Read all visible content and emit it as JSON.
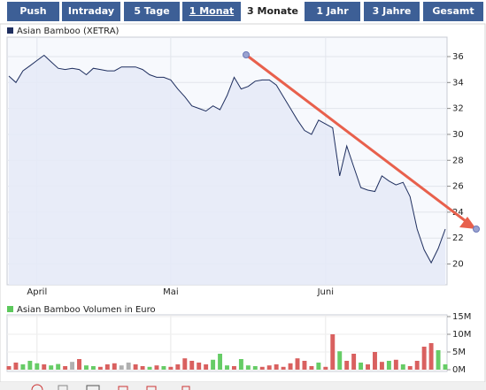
{
  "tabs": [
    "Push",
    "Intraday",
    "5 Tage",
    "1 Monat",
    "3 Monate",
    "1 Jahr",
    "3 Jahre",
    "Gesamt"
  ],
  "chart_data": [
    {
      "type": "line",
      "categories": [
        null,
        null,
        null,
        null,
        "April",
        null,
        null,
        null,
        null,
        null,
        null,
        null,
        null,
        null,
        null,
        null,
        null,
        null,
        null,
        null,
        null,
        null,
        null,
        "Mai",
        null,
        null,
        null,
        null,
        null,
        null,
        null,
        null,
        null,
        null,
        null,
        null,
        null,
        null,
        null,
        null,
        null,
        null,
        null,
        null,
        null,
        "Juni",
        null,
        null,
        null,
        null,
        null,
        null,
        null,
        null,
        null,
        null,
        null,
        null,
        null,
        null,
        null,
        null,
        null
      ],
      "series": [
        {
          "name": "Asian Bamboo (XETRA)",
          "color": "#1f2f5f",
          "values": [
            34.5,
            34.0,
            34.9,
            35.3,
            35.7,
            36.1,
            35.6,
            35.1,
            35.0,
            35.1,
            35.0,
            34.6,
            35.1,
            35.0,
            34.9,
            34.9,
            35.2,
            35.2,
            35.2,
            35.0,
            34.6,
            34.4,
            34.4,
            34.2,
            33.5,
            32.9,
            32.2,
            32.0,
            31.8,
            32.2,
            31.9,
            33.0,
            34.4,
            33.5,
            33.7,
            34.1,
            34.2,
            34.2,
            33.8,
            32.9,
            32.0,
            31.1,
            30.3,
            30.0,
            31.1,
            30.8,
            30.5,
            26.8,
            29.1,
            27.5,
            25.9,
            25.7,
            25.6,
            26.8,
            26.4,
            26.1,
            26.3,
            25.2,
            22.7,
            21.1,
            20.1,
            21.2,
            22.7
          ]
        }
      ],
      "ylim": [
        18.4,
        37.5
      ],
      "yticks": [
        20,
        22,
        24,
        26,
        28,
        30,
        32,
        34,
        36
      ],
      "grid": true
    },
    {
      "type": "bar",
      "series": [
        {
          "name": "Asian Bamboo Volumen in Euro",
          "color": "#5cc85c",
          "values": [
            1000000,
            2000000,
            1500000,
            2500000,
            1800000,
            1500000,
            1200000,
            1600000,
            1000000,
            2200000,
            3000000,
            1200000,
            1000000,
            800000,
            1500000,
            1800000,
            1200000,
            2000000,
            1500000,
            1000000,
            800000,
            1200000,
            1000000,
            800000,
            1500000,
            3200000,
            2500000,
            2000000,
            1500000,
            2800000,
            4500000,
            1200000,
            1000000,
            3000000,
            1200000,
            1000000,
            800000,
            1200000,
            1500000,
            800000,
            1800000,
            3200000,
            2500000,
            1000000,
            2000000,
            800000,
            10000000,
            5200000,
            2500000,
            4500000,
            2000000,
            1500000,
            5000000,
            2200000,
            2500000,
            2800000,
            1500000,
            1000000,
            2500000,
            6500000,
            7500000,
            5500000,
            1500000
          ],
          "colors": [
            "#d9605f",
            "#d9605f",
            "#66cc66",
            "#66cc66",
            "#66cc66",
            "#d9605f",
            "#66cc66",
            "#66cc66",
            "#d9605f",
            "#b0b0b0",
            "#d9605f",
            "#66cc66",
            "#66cc66",
            "#d9605f",
            "#d9605f",
            "#d9605f",
            "#b0b0b0",
            "#b0b0b0",
            "#d9605f",
            "#d9605f",
            "#66cc66",
            "#d9605f",
            "#66cc66",
            "#d9605f",
            "#d9605f",
            "#d9605f",
            "#d9605f",
            "#d9605f",
            "#d9605f",
            "#66cc66",
            "#66cc66",
            "#66cc66",
            "#d9605f",
            "#66cc66",
            "#66cc66",
            "#66cc66",
            "#d9605f",
            "#d9605f",
            "#d9605f",
            "#d9605f",
            "#d9605f",
            "#d9605f",
            "#d9605f",
            "#d9605f",
            "#66cc66",
            "#d9605f",
            "#d9605f",
            "#66cc66",
            "#d9605f",
            "#d9605f",
            "#66cc66",
            "#d9605f",
            "#d9605f",
            "#d9605f",
            "#66cc66",
            "#d9605f",
            "#66cc66",
            "#d9605f",
            "#d9605f",
            "#d9605f",
            "#d9605f",
            "#66cc66",
            "#66cc66"
          ]
        }
      ],
      "ylim": [
        0,
        15500000
      ],
      "yticks": [
        {
          "value": 0,
          "label": "0M"
        },
        {
          "value": 5000000,
          "label": "5M"
        },
        {
          "value": 10000000,
          "label": "10M"
        },
        {
          "value": 15000000,
          "label": "15M"
        }
      ],
      "grid": true
    }
  ]
}
